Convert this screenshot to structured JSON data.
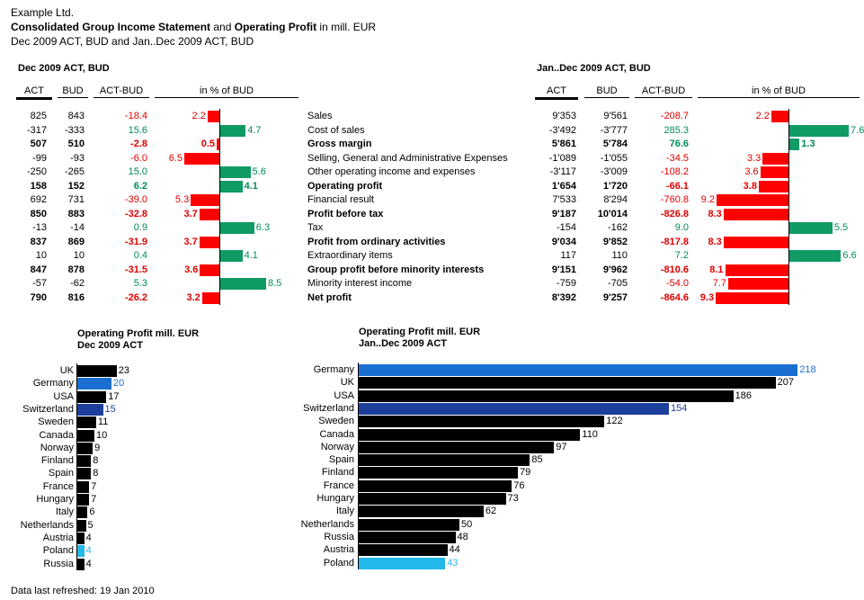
{
  "header": {
    "company": "Example Ltd.",
    "title_part1": "Consolidated Group Income Statement",
    "title_and": " and ",
    "title_part2": "Operating Profit",
    "title_unit": " in mill. EUR",
    "subtitle": "Dec 2009 ACT, BUD and Jan..Dec 2009 ACT, BUD"
  },
  "table": {
    "left_title": "Dec 2009 ACT, BUD",
    "right_title": "Jan..Dec 2009 ACT, BUD",
    "col_act": "ACT",
    "col_bud": "BUD",
    "col_diff": "ACT-BUD",
    "col_pct": "in % of BUD",
    "rows": [
      {
        "label": "Sales",
        "bold": false,
        "m_act": "825",
        "m_bud": "843",
        "m_diff": "-18.4",
        "m_pct": "2.2",
        "m_pct_v": -2.2,
        "y_act": "9'353",
        "y_bud": "9'561",
        "y_diff": "-208.7",
        "y_pct": "2.2",
        "y_pct_v": -2.2
      },
      {
        "label": "Cost of sales",
        "bold": false,
        "m_act": "-317",
        "m_bud": "-333",
        "m_diff": "15.6",
        "m_pct": "4.7",
        "m_pct_v": 4.7,
        "y_act": "-3'492",
        "y_bud": "-3'777",
        "y_diff": "285.3",
        "y_pct": "7.6",
        "y_pct_v": 7.6
      },
      {
        "label": "Gross margin",
        "bold": true,
        "m_act": "507",
        "m_bud": "510",
        "m_diff": "-2.8",
        "m_pct": "0.5",
        "m_pct_v": -0.5,
        "y_act": "5'861",
        "y_bud": "5'784",
        "y_diff": "76.6",
        "y_pct": "1.3",
        "y_pct_v": 1.3
      },
      {
        "label": "Selling, General and Administrative Expenses",
        "bold": false,
        "m_act": "-99",
        "m_bud": "-93",
        "m_diff": "-6.0",
        "m_pct": "6.5",
        "m_pct_v": -6.5,
        "y_act": "-1'089",
        "y_bud": "-1'055",
        "y_diff": "-34.5",
        "y_pct": "3.3",
        "y_pct_v": -3.3
      },
      {
        "label": "Other operating income and expenses",
        "bold": false,
        "m_act": "-250",
        "m_bud": "-265",
        "m_diff": "15.0",
        "m_pct": "5.6",
        "m_pct_v": 5.6,
        "y_act": "-3'117",
        "y_bud": "-3'009",
        "y_diff": "-108.2",
        "y_pct": "3.6",
        "y_pct_v": -3.6
      },
      {
        "label": "Operating profit",
        "bold": true,
        "m_act": "158",
        "m_bud": "152",
        "m_diff": "6.2",
        "m_pct": "4.1",
        "m_pct_v": 4.1,
        "y_act": "1'654",
        "y_bud": "1'720",
        "y_diff": "-66.1",
        "y_pct": "3.8",
        "y_pct_v": -3.8
      },
      {
        "label": "Financial result",
        "bold": false,
        "m_act": "692",
        "m_bud": "731",
        "m_diff": "-39.0",
        "m_pct": "5.3",
        "m_pct_v": -5.3,
        "y_act": "7'533",
        "y_bud": "8'294",
        "y_diff": "-760.8",
        "y_pct": "9.2",
        "y_pct_v": -9.2
      },
      {
        "label": "Profit before tax",
        "bold": true,
        "m_act": "850",
        "m_bud": "883",
        "m_diff": "-32.8",
        "m_pct": "3.7",
        "m_pct_v": -3.7,
        "y_act": "9'187",
        "y_bud": "10'014",
        "y_diff": "-826.8",
        "y_pct": "8.3",
        "y_pct_v": -8.3
      },
      {
        "label": "Tax",
        "bold": false,
        "m_act": "-13",
        "m_bud": "-14",
        "m_diff": "0.9",
        "m_pct": "6.3",
        "m_pct_v": 6.3,
        "y_act": "-154",
        "y_bud": "-162",
        "y_diff": "9.0",
        "y_pct": "5.5",
        "y_pct_v": 5.5
      },
      {
        "label": "Profit from ordinary activities",
        "bold": true,
        "m_act": "837",
        "m_bud": "869",
        "m_diff": "-31.9",
        "m_pct": "3.7",
        "m_pct_v": -3.7,
        "y_act": "9'034",
        "y_bud": "9'852",
        "y_diff": "-817.8",
        "y_pct": "8.3",
        "y_pct_v": -8.3
      },
      {
        "label": "Extraordinary items",
        "bold": false,
        "m_act": "10",
        "m_bud": "10",
        "m_diff": "0.4",
        "m_pct": "4.1",
        "m_pct_v": 4.1,
        "y_act": "117",
        "y_bud": "110",
        "y_diff": "7.2",
        "y_pct": "6.6",
        "y_pct_v": 6.6
      },
      {
        "label": "Group profit before minority interests",
        "bold": true,
        "m_act": "847",
        "m_bud": "878",
        "m_diff": "-31.5",
        "m_pct": "3.6",
        "m_pct_v": -3.6,
        "y_act": "9'151",
        "y_bud": "9'962",
        "y_diff": "-810.6",
        "y_pct": "8.1",
        "y_pct_v": -8.1
      },
      {
        "label": "Minority interest income",
        "bold": false,
        "m_act": "-57",
        "m_bud": "-62",
        "m_diff": "5.3",
        "m_pct": "8.5",
        "m_pct_v": 8.5,
        "y_act": "-759",
        "y_bud": "-705",
        "y_diff": "-54.0",
        "y_pct": "7.7",
        "y_pct_v": -7.7
      },
      {
        "label": "Net profit",
        "bold": true,
        "m_act": "790",
        "m_bud": "816",
        "m_diff": "-26.2",
        "m_pct": "3.2",
        "m_pct_v": -3.2,
        "y_act": "8'392",
        "y_bud": "9'257",
        "y_diff": "-864.6",
        "y_pct": "9.3",
        "y_pct_v": -9.3
      }
    ]
  },
  "chart_data": [
    {
      "type": "bar",
      "orientation": "horizontal",
      "title": "Operating Profit mill. EUR",
      "subtitle": "Dec 2009 ACT",
      "categories": [
        "UK",
        "Germany",
        "USA",
        "Switzerland",
        "Sweden",
        "Canada",
        "Norway",
        "Finland",
        "Spain",
        "France",
        "Hungary",
        "Italy",
        "Netherlands",
        "Austria",
        "Poland",
        "Russia"
      ],
      "values": [
        23,
        20,
        17,
        15,
        11,
        10,
        9,
        8,
        8,
        7,
        7,
        6,
        5,
        4,
        4,
        4
      ],
      "colors": [
        "#000000",
        "#1a6fd1",
        "#000000",
        "#1c3f9c",
        "#000000",
        "#000000",
        "#000000",
        "#000000",
        "#000000",
        "#000000",
        "#000000",
        "#000000",
        "#000000",
        "#000000",
        "#22b8ea",
        "#000000"
      ],
      "xlim": [
        0,
        218
      ]
    },
    {
      "type": "bar",
      "orientation": "horizontal",
      "title": "Operating Profit mill. EUR",
      "subtitle": "Jan..Dec 2009 ACT",
      "categories": [
        "Germany",
        "UK",
        "USA",
        "Switzerland",
        "Sweden",
        "Canada",
        "Norway",
        "Spain",
        "Finland",
        "France",
        "Hungary",
        "Italy",
        "Netherlands",
        "Russia",
        "Austria",
        "Poland"
      ],
      "values": [
        218,
        207,
        186,
        154,
        122,
        110,
        97,
        85,
        79,
        76,
        73,
        62,
        50,
        48,
        44,
        43
      ],
      "colors": [
        "#1a6fd1",
        "#000000",
        "#000000",
        "#1c3f9c",
        "#000000",
        "#000000",
        "#000000",
        "#000000",
        "#000000",
        "#000000",
        "#000000",
        "#000000",
        "#000000",
        "#000000",
        "#000000",
        "#22b8ea"
      ],
      "xlim": [
        0,
        218
      ]
    }
  ],
  "footer": {
    "refreshed": "Data last refreshed: 19 Jan 2010"
  }
}
